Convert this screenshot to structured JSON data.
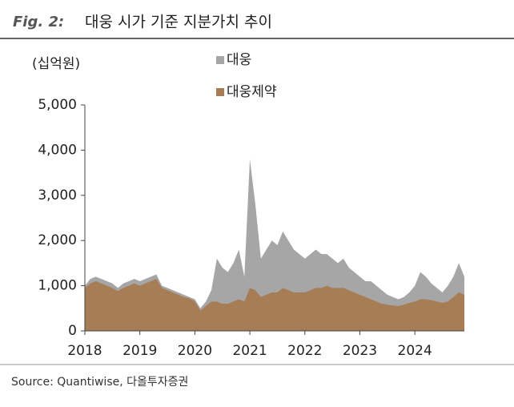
{
  "figure_label": "Fig. 2:",
  "chart_data": {
    "type": "area",
    "title": "대웅 시가 기준 지분가치 추이",
    "y_label": "(십억원)",
    "source": "Source: Quantiwise, 다올투자증권",
    "x": [
      2018.0,
      2018.1,
      2018.2,
      2018.3,
      2018.4,
      2018.5,
      2018.6,
      2018.7,
      2018.8,
      2018.9,
      2019.0,
      2019.1,
      2019.2,
      2019.3,
      2019.4,
      2019.5,
      2019.6,
      2019.7,
      2019.8,
      2019.9,
      2020.0,
      2020.1,
      2020.2,
      2020.3,
      2020.4,
      2020.5,
      2020.6,
      2020.7,
      2020.8,
      2020.9,
      2021.0,
      2021.1,
      2021.2,
      2021.3,
      2021.4,
      2021.5,
      2021.6,
      2021.7,
      2021.8,
      2021.9,
      2022.0,
      2022.1,
      2022.2,
      2022.3,
      2022.4,
      2022.5,
      2022.6,
      2022.7,
      2022.8,
      2022.9,
      2023.0,
      2023.1,
      2023.2,
      2023.3,
      2023.4,
      2023.5,
      2023.6,
      2023.7,
      2023.8,
      2023.9,
      2024.0,
      2024.1,
      2024.2,
      2024.3,
      2024.4,
      2024.5,
      2024.6,
      2024.7,
      2024.8,
      2024.9
    ],
    "series": [
      {
        "name": "대웅",
        "color": "#a6a6a6",
        "values": [
          1000,
          1150,
          1200,
          1150,
          1100,
          1050,
          950,
          1050,
          1100,
          1150,
          1100,
          1150,
          1200,
          1250,
          1000,
          950,
          900,
          850,
          800,
          750,
          700,
          500,
          650,
          900,
          1600,
          1400,
          1300,
          1500,
          1800,
          1200,
          3800,
          2800,
          1600,
          1800,
          2000,
          1900,
          2200,
          2000,
          1800,
          1700,
          1600,
          1700,
          1800,
          1700,
          1700,
          1600,
          1500,
          1600,
          1400,
          1300,
          1200,
          1100,
          1100,
          1000,
          900,
          800,
          750,
          700,
          750,
          850,
          1000,
          1300,
          1200,
          1050,
          950,
          850,
          1000,
          1200,
          1500,
          1200
        ]
      },
      {
        "name": "대웅제약",
        "color": "#a77d55",
        "values": [
          950,
          1050,
          1100,
          1050,
          1000,
          950,
          880,
          950,
          1000,
          1050,
          1000,
          1050,
          1100,
          1150,
          950,
          900,
          850,
          800,
          750,
          720,
          650,
          450,
          550,
          650,
          650,
          600,
          600,
          650,
          700,
          650,
          950,
          900,
          750,
          800,
          850,
          850,
          950,
          900,
          850,
          850,
          850,
          900,
          950,
          950,
          1000,
          950,
          950,
          950,
          900,
          850,
          800,
          750,
          700,
          650,
          600,
          580,
          560,
          550,
          580,
          620,
          650,
          700,
          700,
          680,
          650,
          620,
          650,
          750,
          850,
          800
        ]
      }
    ],
    "xlim": [
      2018,
      2024.9
    ],
    "xticks": [
      2018,
      2019,
      2020,
      2021,
      2022,
      2023,
      2024
    ],
    "ylim": [
      0,
      5000
    ],
    "yticks": [
      0,
      {
        "value": 1000,
        "label": "1,000"
      },
      {
        "value": 2000,
        "label": "2,000"
      },
      {
        "value": 3000,
        "label": "3,000"
      },
      {
        "value": 4000,
        "label": "4,000"
      },
      {
        "value": 5000,
        "label": "5,000"
      }
    ],
    "legend": "top"
  }
}
